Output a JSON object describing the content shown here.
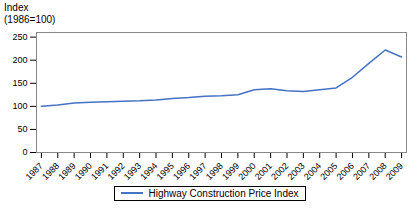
{
  "chart_data": {
    "type": "line",
    "ylabel": "Index\n(1986=100)",
    "x": [
      1987,
      1988,
      1989,
      1990,
      1991,
      1992,
      1993,
      1994,
      1995,
      1996,
      1997,
      1998,
      1999,
      2000,
      2001,
      2002,
      2003,
      2004,
      2005,
      2006,
      2007,
      2008,
      2009
    ],
    "series": [
      {
        "name": "Highway Construction Price Index",
        "color": "#4472c4",
        "values": [
          100,
          103,
          107,
          109,
          110,
          111,
          112,
          114,
          117,
          119,
          122,
          123,
          125,
          136,
          138,
          134,
          132,
          136,
          140,
          163,
          193,
          222,
          207
        ]
      }
    ],
    "xlim": [
      1986.7,
      2009.3
    ],
    "xticks": [
      1987,
      1988,
      1989,
      1990,
      1991,
      1992,
      1993,
      1994,
      1995,
      1996,
      1997,
      1998,
      1999,
      2000,
      2001,
      2002,
      2003,
      2004,
      2005,
      2006,
      2007,
      2008,
      2009
    ],
    "ylim": [
      0,
      260
    ],
    "yticks": [
      0,
      50,
      100,
      150,
      200,
      250
    ],
    "grid": false,
    "legend": "bottom"
  }
}
